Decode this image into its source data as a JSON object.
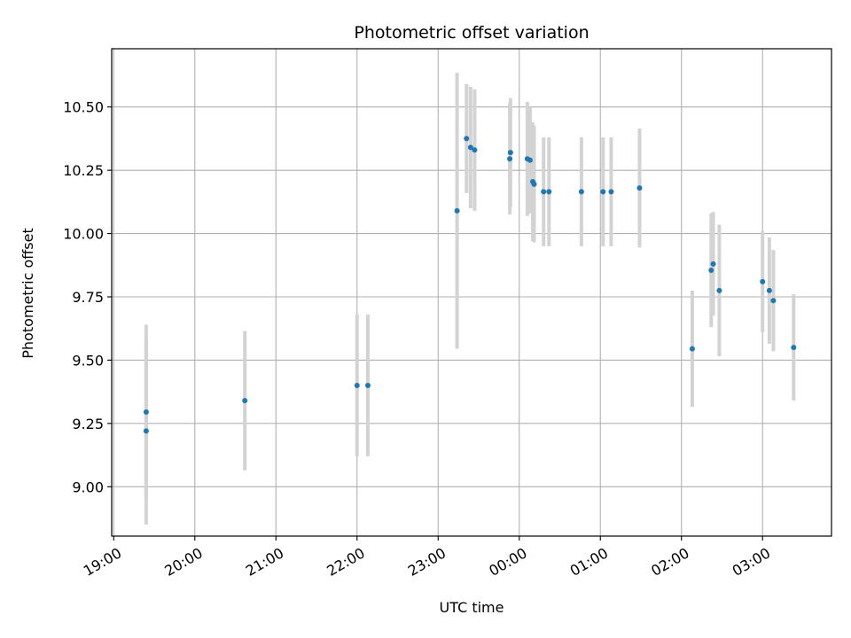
{
  "chart_data": {
    "type": "scatter",
    "title": "Photometric offset variation",
    "xlabel": "UTC time",
    "ylabel": "Photometric offset",
    "x_unit": "minutes after 19:00 UTC",
    "xlim": [
      -1.5,
      531
    ],
    "ylim": [
      8.805,
      10.73
    ],
    "grid": true,
    "x_ticks": [
      {
        "value": 0,
        "label": "19:00"
      },
      {
        "value": 60,
        "label": "20:00"
      },
      {
        "value": 120,
        "label": "21:00"
      },
      {
        "value": 180,
        "label": "22:00"
      },
      {
        "value": 240,
        "label": "23:00"
      },
      {
        "value": 300,
        "label": "00:00"
      },
      {
        "value": 360,
        "label": "01:00"
      },
      {
        "value": 420,
        "label": "02:00"
      },
      {
        "value": 480,
        "label": "03:00"
      }
    ],
    "y_ticks": [
      {
        "value": 9.0,
        "label": "9.00"
      },
      {
        "value": 9.25,
        "label": "9.25"
      },
      {
        "value": 9.5,
        "label": "9.50"
      },
      {
        "value": 9.75,
        "label": "9.75"
      },
      {
        "value": 10.0,
        "label": "10.00"
      },
      {
        "value": 10.25,
        "label": "10.25"
      },
      {
        "value": 10.5,
        "label": "10.50"
      }
    ],
    "marker_color": "#1f77b4",
    "errorbar_color": "#d3d3d3",
    "points": [
      {
        "x": 24,
        "y": 9.295,
        "err": 0.345
      },
      {
        "x": 24,
        "y": 9.22,
        "err": 0.37
      },
      {
        "x": 97,
        "y": 9.34,
        "err": 0.275
      },
      {
        "x": 180,
        "y": 9.4,
        "err": 0.28
      },
      {
        "x": 188,
        "y": 9.4,
        "err": 0.28
      },
      {
        "x": 254,
        "y": 10.09,
        "err": 0.545
      },
      {
        "x": 261,
        "y": 10.375,
        "err": 0.215
      },
      {
        "x": 264,
        "y": 10.34,
        "err": 0.24
      },
      {
        "x": 267,
        "y": 10.33,
        "err": 0.24
      },
      {
        "x": 293,
        "y": 10.295,
        "err": 0.22
      },
      {
        "x": 293.5,
        "y": 10.32,
        "err": 0.215
      },
      {
        "x": 306,
        "y": 10.295,
        "err": 0.225
      },
      {
        "x": 308,
        "y": 10.29,
        "err": 0.21
      },
      {
        "x": 310,
        "y": 10.205,
        "err": 0.235
      },
      {
        "x": 311,
        "y": 10.195,
        "err": 0.23
      },
      {
        "x": 318,
        "y": 10.165,
        "err": 0.215
      },
      {
        "x": 322,
        "y": 10.165,
        "err": 0.215
      },
      {
        "x": 346,
        "y": 10.165,
        "err": 0.215
      },
      {
        "x": 362,
        "y": 10.165,
        "err": 0.215
      },
      {
        "x": 368,
        "y": 10.165,
        "err": 0.215
      },
      {
        "x": 389,
        "y": 10.18,
        "err": 0.235
      },
      {
        "x": 428,
        "y": 9.545,
        "err": 0.23
      },
      {
        "x": 442,
        "y": 9.855,
        "err": 0.225
      },
      {
        "x": 443.5,
        "y": 9.88,
        "err": 0.205
      },
      {
        "x": 448,
        "y": 9.775,
        "err": 0.26
      },
      {
        "x": 480,
        "y": 9.81,
        "err": 0.2
      },
      {
        "x": 485,
        "y": 9.775,
        "err": 0.21
      },
      {
        "x": 488,
        "y": 9.735,
        "err": 0.2
      },
      {
        "x": 503,
        "y": 9.55,
        "err": 0.21
      }
    ]
  }
}
